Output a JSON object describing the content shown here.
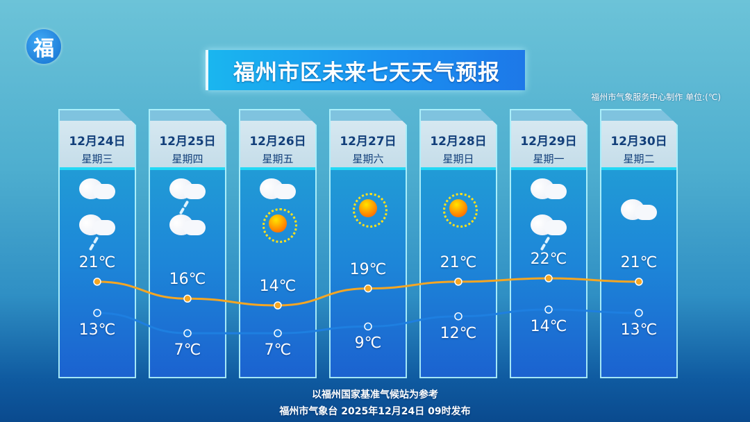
{
  "logo_text": "福",
  "title": "福州市区未来七天天气预报",
  "source": "福州市气象服务中心制作  单位:(℃)",
  "days": [
    {
      "date": "12月24日",
      "weekday": "星期三",
      "icons": [
        "cloudy",
        "light-rain"
      ],
      "high": "21℃",
      "low": "13℃"
    },
    {
      "date": "12月25日",
      "weekday": "星期四",
      "icons": [
        "light-rain",
        "cloudy"
      ],
      "high": "16℃",
      "low": "7℃"
    },
    {
      "date": "12月26日",
      "weekday": "星期五",
      "icons": [
        "cloudy",
        "sunny"
      ],
      "high": "14℃",
      "low": "7℃"
    },
    {
      "date": "12月27日",
      "weekday": "星期六",
      "icons": [
        "sunny"
      ],
      "high": "19℃",
      "low": "9℃"
    },
    {
      "date": "12月28日",
      "weekday": "星期日",
      "icons": [
        "sunny"
      ],
      "high": "21℃",
      "low": "12℃"
    },
    {
      "date": "12月29日",
      "weekday": "星期一",
      "icons": [
        "cloudy",
        "light-rain"
      ],
      "high": "22℃",
      "low": "14℃"
    },
    {
      "date": "12月30日",
      "weekday": "星期二",
      "icons": [
        "cloudy"
      ],
      "high": "21℃",
      "low": "13℃"
    }
  ],
  "chart_data": {
    "type": "line",
    "categories": [
      "12月24日",
      "12月25日",
      "12月26日",
      "12月27日",
      "12月28日",
      "12月29日",
      "12月30日"
    ],
    "series": [
      {
        "name": "high",
        "values": [
          21,
          16,
          14,
          19,
          21,
          22,
          21
        ],
        "color": "#f5a623"
      },
      {
        "name": "low",
        "values": [
          13,
          7,
          7,
          9,
          12,
          14,
          13
        ],
        "color": "#1e7fe0"
      }
    ],
    "unit": "℃"
  },
  "footer": {
    "line1": "以福州国家基准气候站为参考",
    "line2": "福州市气象台 2025年12月24日 09时发布"
  }
}
